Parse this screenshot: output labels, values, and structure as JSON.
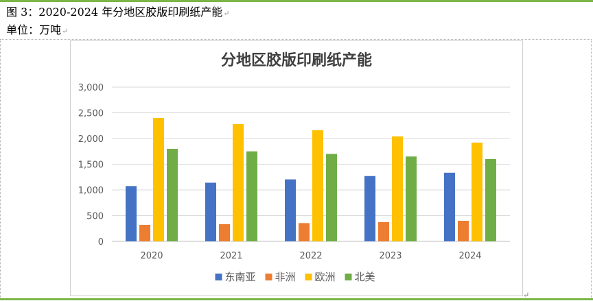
{
  "caption": {
    "title": "图 3：2020-2024 年分地区胶版印刷纸产能",
    "unit": "单位：万吨",
    "para_mark": "↵"
  },
  "chart_data": {
    "type": "bar",
    "title": "分地区胶版印刷纸产能",
    "categories": [
      "2020",
      "2021",
      "2022",
      "2023",
      "2024"
    ],
    "series": [
      {
        "name": "东南亚",
        "color": "#4472c4",
        "values": [
          1075,
          1140,
          1205,
          1270,
          1335
        ]
      },
      {
        "name": "非洲",
        "color": "#ed7d31",
        "values": [
          320,
          335,
          355,
          375,
          400
        ]
      },
      {
        "name": "欧洲",
        "color": "#ffc000",
        "values": [
          2400,
          2280,
          2160,
          2040,
          1920
        ]
      },
      {
        "name": "北美",
        "color": "#70ad47",
        "values": [
          1800,
          1750,
          1700,
          1650,
          1600
        ]
      }
    ],
    "ylim": [
      0,
      3000
    ],
    "yticks": [
      0,
      500,
      1000,
      1500,
      2000,
      2500,
      3000
    ],
    "ytick_labels": [
      "0",
      "500",
      "1,000",
      "1,500",
      "2,000",
      "2,500",
      "3,000"
    ],
    "grid": true,
    "legend": "bottom",
    "xlabel": "",
    "ylabel": ""
  }
}
